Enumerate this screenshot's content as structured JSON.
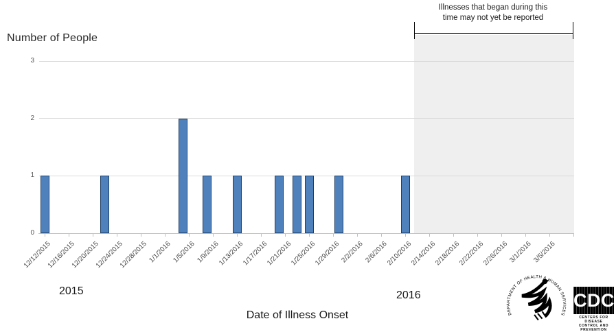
{
  "chart_data": {
    "type": "bar",
    "ylabel": "Number of People",
    "xlabel": "Date of Illness Onset",
    "ylim": [
      0,
      3
    ],
    "y_ticks": [
      0,
      1,
      2,
      3
    ],
    "grid": "horizontal gridlines on",
    "legend": "none",
    "x_axis_start_date": "12/12/2015",
    "x_axis_end_date": "3/9/2016",
    "x_tick_interval_days": 4,
    "x_tick_labels": [
      "12/12/2015",
      "12/16/2015",
      "12/20/2015",
      "12/24/2015",
      "12/28/2015",
      "1/1/2016",
      "1/5/2016",
      "1/9/2016",
      "1/13/2016",
      "1/17/2016",
      "1/21/2016",
      "1/25/2016",
      "1/29/2016",
      "2/2/2016",
      "2/6/2016",
      "2/10/2016",
      "2/14/2016",
      "2/18/2016",
      "2/22/2016",
      "2/26/2016",
      "3/1/2016",
      "3/5/2016"
    ],
    "bars": [
      {
        "date": "12/12/2015",
        "day": 0,
        "count": 1
      },
      {
        "date": "12/22/2015",
        "day": 10,
        "count": 1
      },
      {
        "date": "1/4/2016",
        "day": 23,
        "count": 2
      },
      {
        "date": "1/8/2016",
        "day": 27,
        "count": 1
      },
      {
        "date": "1/13/2016",
        "day": 32,
        "count": 1
      },
      {
        "date": "1/20/2016",
        "day": 39,
        "count": 1
      },
      {
        "date": "1/23/2016",
        "day": 42,
        "count": 1
      },
      {
        "date": "1/25/2016",
        "day": 44,
        "count": 1
      },
      {
        "date": "1/30/2016",
        "day": 49,
        "count": 1
      },
      {
        "date": "2/10/2016",
        "day": 60,
        "count": 1
      }
    ],
    "total_cases": 11,
    "unreported_region": {
      "start_date": "2/12/2016",
      "start_day": 62
    },
    "annotation": {
      "line1": "Illnesses that began during this",
      "line2": "time may not yet be reported"
    },
    "year_left": {
      "label": "2015"
    },
    "year_right": {
      "label": "2016"
    }
  },
  "colors": {
    "bar_fill": "#4f81bd",
    "bar_border": "#1c3c63",
    "shaded_region": "#efefef",
    "gridline": "#d9d9d9",
    "axis_line": "#c0c0c0",
    "background": "#ffffff"
  },
  "logos": {
    "hhs": {
      "ring_text": "DEPARTMENT OF HEALTH & HUMAN SERVICES • USA"
    },
    "cdc": {
      "acronym": "CDC",
      "caption_line1": "CENTERS FOR DISEASE",
      "caption_line2": "CONTROL AND PREVENTION"
    }
  }
}
